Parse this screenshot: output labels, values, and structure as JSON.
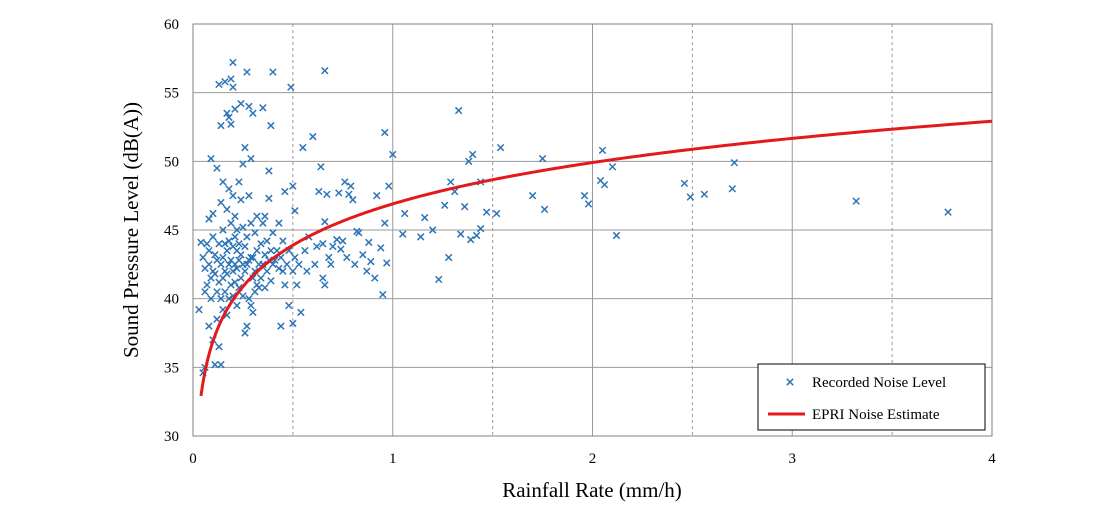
{
  "chart_data": {
    "type": "scatter",
    "xlabel": "Rainfall Rate (mm/h)",
    "ylabel": "Sound Pressure Level (dB(A))",
    "xlim": [
      0,
      4
    ],
    "ylim": [
      30,
      60
    ],
    "x_ticks": [
      "0",
      "1",
      "2",
      "3",
      "4"
    ],
    "y_ticks": [
      "30",
      "35",
      "40",
      "45",
      "50",
      "55",
      "60"
    ],
    "x_minor_gridlines": [
      0.5,
      1.5,
      2.5,
      3.5
    ],
    "grid": true,
    "legend_position": "bottom-right",
    "series": [
      {
        "name": "Recorded Noise Level",
        "marker": "x",
        "color": "#2E75B6",
        "points": [
          [
            0.03,
            39.2
          ],
          [
            0.04,
            44.1
          ],
          [
            0.05,
            34.6
          ],
          [
            0.05,
            43.0
          ],
          [
            0.06,
            35.0
          ],
          [
            0.06,
            40.5
          ],
          [
            0.06,
            42.2
          ],
          [
            0.07,
            41.0
          ],
          [
            0.07,
            44.0
          ],
          [
            0.08,
            38.0
          ],
          [
            0.08,
            42.5
          ],
          [
            0.08,
            45.8
          ],
          [
            0.08,
            43.5
          ],
          [
            0.09,
            40.0
          ],
          [
            0.09,
            41.5
          ],
          [
            0.09,
            50.2
          ],
          [
            0.1,
            37.0
          ],
          [
            0.1,
            42.0
          ],
          [
            0.1,
            44.5
          ],
          [
            0.1,
            46.2
          ],
          [
            0.11,
            35.2
          ],
          [
            0.11,
            41.8
          ],
          [
            0.11,
            43.2
          ],
          [
            0.12,
            38.5
          ],
          [
            0.12,
            40.5
          ],
          [
            0.12,
            42.8
          ],
          [
            0.12,
            49.5
          ],
          [
            0.13,
            36.5
          ],
          [
            0.13,
            41.2
          ],
          [
            0.13,
            44.0
          ],
          [
            0.13,
            55.6
          ],
          [
            0.14,
            35.2
          ],
          [
            0.14,
            40.0
          ],
          [
            0.14,
            42.5
          ],
          [
            0.14,
            47.0
          ],
          [
            0.14,
            52.6
          ],
          [
            0.15,
            39.2
          ],
          [
            0.15,
            41.5
          ],
          [
            0.15,
            43.0
          ],
          [
            0.15,
            45.0
          ],
          [
            0.15,
            48.5
          ],
          [
            0.16,
            40.5
          ],
          [
            0.16,
            42.0
          ],
          [
            0.16,
            44.0
          ],
          [
            0.16,
            55.8
          ],
          [
            0.17,
            38.8
          ],
          [
            0.17,
            41.8
          ],
          [
            0.17,
            43.5
          ],
          [
            0.17,
            46.5
          ],
          [
            0.17,
            53.5
          ],
          [
            0.18,
            40.0
          ],
          [
            0.18,
            42.5
          ],
          [
            0.18,
            44.2
          ],
          [
            0.18,
            48.0
          ],
          [
            0.18,
            53.2
          ],
          [
            0.19,
            41.0
          ],
          [
            0.19,
            42.8
          ],
          [
            0.19,
            45.5
          ],
          [
            0.19,
            56.0
          ],
          [
            0.19,
            52.7
          ],
          [
            0.2,
            40.2
          ],
          [
            0.2,
            42.0
          ],
          [
            0.2,
            43.8
          ],
          [
            0.2,
            47.5
          ],
          [
            0.2,
            57.2
          ],
          [
            0.2,
            55.4
          ],
          [
            0.21,
            41.2
          ],
          [
            0.21,
            42.5
          ],
          [
            0.21,
            44.5
          ],
          [
            0.21,
            46.0
          ],
          [
            0.21,
            53.8
          ],
          [
            0.22,
            39.5
          ],
          [
            0.22,
            42.2
          ],
          [
            0.22,
            43.5
          ],
          [
            0.22,
            45.0
          ],
          [
            0.23,
            40.8
          ],
          [
            0.23,
            42.8
          ],
          [
            0.23,
            44.0
          ],
          [
            0.23,
            48.5
          ],
          [
            0.24,
            41.5
          ],
          [
            0.24,
            43.2
          ],
          [
            0.24,
            47.2
          ],
          [
            0.24,
            54.2
          ],
          [
            0.25,
            40.2
          ],
          [
            0.25,
            42.5
          ],
          [
            0.25,
            45.2
          ],
          [
            0.25,
            49.8
          ],
          [
            0.26,
            37.5
          ],
          [
            0.26,
            42.0
          ],
          [
            0.26,
            43.8
          ],
          [
            0.26,
            51.0
          ],
          [
            0.27,
            38.0
          ],
          [
            0.27,
            42.5
          ],
          [
            0.27,
            44.5
          ],
          [
            0.27,
            56.5
          ],
          [
            0.28,
            40.0
          ],
          [
            0.28,
            42.8
          ],
          [
            0.28,
            47.5
          ],
          [
            0.28,
            54.0
          ],
          [
            0.29,
            39.5
          ],
          [
            0.29,
            43.0
          ],
          [
            0.29,
            45.5
          ],
          [
            0.29,
            50.2
          ],
          [
            0.3,
            39.0
          ],
          [
            0.3,
            41.5
          ],
          [
            0.3,
            43.0
          ],
          [
            0.3,
            53.5
          ],
          [
            0.31,
            40.5
          ],
          [
            0.31,
            42.0
          ],
          [
            0.31,
            44.8
          ],
          [
            0.32,
            41.0
          ],
          [
            0.32,
            43.5
          ],
          [
            0.32,
            46.0
          ],
          [
            0.33,
            40.8
          ],
          [
            0.33,
            42.5
          ],
          [
            0.34,
            41.5
          ],
          [
            0.34,
            44.0
          ],
          [
            0.35,
            42.5
          ],
          [
            0.35,
            45.5
          ],
          [
            0.35,
            53.9
          ],
          [
            0.36,
            40.8
          ],
          [
            0.36,
            43.2
          ],
          [
            0.36,
            46.0
          ],
          [
            0.37,
            42.0
          ],
          [
            0.37,
            44.2
          ],
          [
            0.38,
            42.8
          ],
          [
            0.38,
            47.3
          ],
          [
            0.38,
            49.3
          ],
          [
            0.39,
            41.3
          ],
          [
            0.39,
            43.5
          ],
          [
            0.39,
            52.6
          ],
          [
            0.4,
            42.5
          ],
          [
            0.4,
            44.8
          ],
          [
            0.4,
            56.5
          ],
          [
            0.41,
            42.8
          ],
          [
            0.42,
            43.5
          ],
          [
            0.43,
            42.2
          ],
          [
            0.43,
            45.5
          ],
          [
            0.44,
            38.0
          ],
          [
            0.44,
            43.0
          ],
          [
            0.45,
            42.0
          ],
          [
            0.45,
            44.2
          ],
          [
            0.46,
            41.0
          ],
          [
            0.46,
            47.8
          ],
          [
            0.47,
            42.5
          ],
          [
            0.48,
            43.5
          ],
          [
            0.48,
            39.5
          ],
          [
            0.49,
            55.4
          ],
          [
            0.5,
            38.2
          ],
          [
            0.5,
            42.0
          ],
          [
            0.5,
            48.2
          ],
          [
            0.51,
            43.0
          ],
          [
            0.51,
            46.4
          ],
          [
            0.52,
            41.0
          ],
          [
            0.53,
            42.5
          ],
          [
            0.54,
            39.0
          ],
          [
            0.55,
            51.0
          ],
          [
            0.56,
            43.5
          ],
          [
            0.57,
            42.0
          ],
          [
            0.58,
            44.5
          ],
          [
            0.6,
            51.8
          ],
          [
            0.61,
            42.5
          ],
          [
            0.62,
            43.8
          ],
          [
            0.63,
            47.8
          ],
          [
            0.64,
            49.6
          ],
          [
            0.65,
            44.0
          ],
          [
            0.65,
            41.5
          ],
          [
            0.66,
            41.0
          ],
          [
            0.66,
            45.6
          ],
          [
            0.66,
            56.6
          ],
          [
            0.67,
            47.6
          ],
          [
            0.68,
            43.0
          ],
          [
            0.69,
            42.5
          ],
          [
            0.7,
            43.8
          ],
          [
            0.72,
            44.3
          ],
          [
            0.73,
            47.7
          ],
          [
            0.74,
            43.6
          ],
          [
            0.75,
            44.2
          ],
          [
            0.76,
            48.5
          ],
          [
            0.77,
            43.0
          ],
          [
            0.78,
            47.6
          ],
          [
            0.79,
            48.2
          ],
          [
            0.8,
            47.2
          ],
          [
            0.81,
            42.5
          ],
          [
            0.82,
            44.9
          ],
          [
            0.83,
            44.8
          ],
          [
            0.85,
            43.2
          ],
          [
            0.87,
            42.0
          ],
          [
            0.88,
            44.1
          ],
          [
            0.89,
            42.7
          ],
          [
            0.91,
            41.5
          ],
          [
            0.92,
            47.5
          ],
          [
            0.94,
            43.7
          ],
          [
            0.95,
            40.3
          ],
          [
            0.96,
            45.5
          ],
          [
            0.96,
            52.1
          ],
          [
            0.97,
            42.6
          ],
          [
            0.98,
            48.2
          ],
          [
            1.0,
            50.5
          ],
          [
            1.05,
            44.7
          ],
          [
            1.06,
            46.2
          ],
          [
            1.14,
            44.5
          ],
          [
            1.16,
            45.9
          ],
          [
            1.2,
            45.0
          ],
          [
            1.23,
            41.4
          ],
          [
            1.26,
            46.8
          ],
          [
            1.28,
            43.0
          ],
          [
            1.29,
            48.5
          ],
          [
            1.31,
            47.8
          ],
          [
            1.33,
            53.7
          ],
          [
            1.34,
            44.7
          ],
          [
            1.36,
            46.7
          ],
          [
            1.38,
            50.0
          ],
          [
            1.39,
            44.3
          ],
          [
            1.4,
            50.5
          ],
          [
            1.42,
            44.6
          ],
          [
            1.44,
            48.5
          ],
          [
            1.44,
            45.1
          ],
          [
            1.47,
            46.3
          ],
          [
            1.52,
            46.2
          ],
          [
            1.54,
            51.0
          ],
          [
            1.7,
            47.5
          ],
          [
            1.75,
            50.2
          ],
          [
            1.76,
            46.5
          ],
          [
            1.96,
            47.5
          ],
          [
            1.98,
            46.9
          ],
          [
            2.04,
            48.6
          ],
          [
            2.05,
            50.8
          ],
          [
            2.06,
            48.3
          ],
          [
            2.1,
            49.6
          ],
          [
            2.12,
            44.6
          ],
          [
            2.46,
            48.4
          ],
          [
            2.49,
            47.4
          ],
          [
            2.56,
            47.6
          ],
          [
            2.7,
            48.0
          ],
          [
            2.71,
            49.9
          ],
          [
            3.32,
            47.1
          ],
          [
            3.78,
            46.3
          ]
        ]
      },
      {
        "name": "EPRI Noise Estimate",
        "type": "line",
        "color": "#E31A1C",
        "x_range": [
          0.04,
          4.0
        ],
        "model": "10*log10(x)+46.9",
        "x": [
          0.04,
          0.06,
          0.08,
          0.1,
          0.15,
          0.2,
          0.3,
          0.4,
          0.5,
          0.7,
          1.0,
          1.5,
          2.0,
          2.5,
          3.0,
          3.5,
          4.0
        ],
        "y": [
          32.9,
          34.7,
          35.9,
          36.9,
          38.7,
          39.9,
          41.7,
          42.9,
          43.9,
          45.4,
          46.9,
          48.7,
          49.9,
          50.9,
          51.7,
          52.3,
          52.9
        ]
      }
    ]
  }
}
